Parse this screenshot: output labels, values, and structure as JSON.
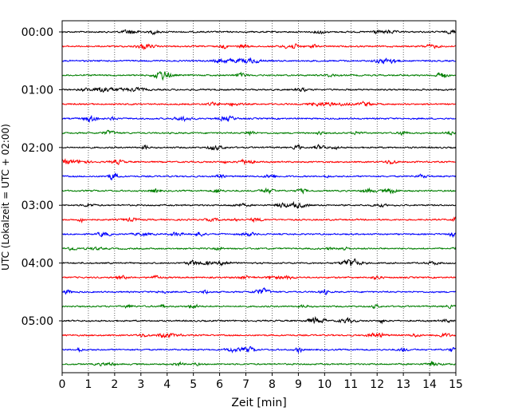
{
  "chart_data": {
    "type": "line",
    "title": "",
    "xlabel": "Zeit  [min]",
    "ylabel": "UTC (Lokalzeit = UTC + 02:00)",
    "xlim": [
      0,
      15
    ],
    "x_ticks": [
      "0",
      "1",
      "2",
      "3",
      "4",
      "5",
      "6",
      "7",
      "8",
      "9",
      "10",
      "11",
      "12",
      "13",
      "14",
      "15"
    ],
    "y_ticks": [
      "00:00",
      "01:00",
      "02:00",
      "03:00",
      "04:00",
      "05:00"
    ],
    "grid": "vertical-dotted",
    "trace_interval_min": 15,
    "trace_colors_cycle": [
      "#000000",
      "#ff0000",
      "#0000ff",
      "#007f00"
    ],
    "series": [
      {
        "start": "00:00",
        "color": "#000000"
      },
      {
        "start": "00:15",
        "color": "#ff0000"
      },
      {
        "start": "00:30",
        "color": "#0000ff"
      },
      {
        "start": "00:45",
        "color": "#007f00"
      },
      {
        "start": "01:00",
        "color": "#000000"
      },
      {
        "start": "01:15",
        "color": "#ff0000"
      },
      {
        "start": "01:30",
        "color": "#0000ff"
      },
      {
        "start": "01:45",
        "color": "#007f00"
      },
      {
        "start": "02:00",
        "color": "#000000"
      },
      {
        "start": "02:15",
        "color": "#ff0000"
      },
      {
        "start": "02:30",
        "color": "#0000ff"
      },
      {
        "start": "02:45",
        "color": "#007f00"
      },
      {
        "start": "03:00",
        "color": "#000000"
      },
      {
        "start": "03:15",
        "color": "#ff0000"
      },
      {
        "start": "03:30",
        "color": "#0000ff"
      },
      {
        "start": "03:45",
        "color": "#007f00"
      },
      {
        "start": "04:00",
        "color": "#000000"
      },
      {
        "start": "04:15",
        "color": "#ff0000"
      },
      {
        "start": "04:30",
        "color": "#0000ff"
      },
      {
        "start": "04:45",
        "color": "#007f00"
      },
      {
        "start": "05:00",
        "color": "#000000"
      },
      {
        "start": "05:15",
        "color": "#ff0000"
      },
      {
        "start": "05:30",
        "color": "#0000ff"
      },
      {
        "start": "05:45",
        "color": "#007f00"
      }
    ]
  }
}
